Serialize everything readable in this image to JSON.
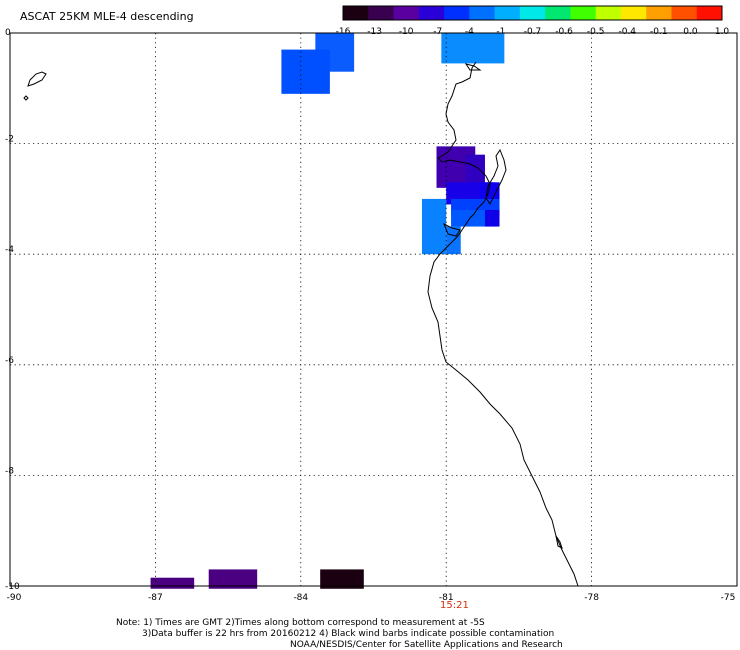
{
  "title": "ASCAT 25KM MLE-4 descending",
  "colorbar": {
    "labels": [
      "-16",
      "-13",
      "-10",
      "-7",
      "-4",
      "-1",
      "-0.7",
      "-0.6",
      "-0.5",
      "-0.4",
      "-0.1",
      "0.0",
      "1.0"
    ],
    "colors": [
      "#1a0010",
      "#3a0050",
      "#5a00a0",
      "#2a00d8",
      "#0030ff",
      "#0070ff",
      "#00b0ff",
      "#00e8e8",
      "#00e870",
      "#40ff00",
      "#c0ff00",
      "#ffe800",
      "#ffa000",
      "#ff5000",
      "#ff1000"
    ]
  },
  "axes": {
    "x_ticks": [
      "-90",
      "-87",
      "-84",
      "-81",
      "-78",
      "-75"
    ],
    "y_ticks": [
      "0",
      "-2",
      "-4",
      "-6",
      "-8",
      "-10"
    ]
  },
  "time_label": "15:21",
  "notes": [
    "Note: 1) Times are GMT 2)Times along bottom correspond to measurement at -5S",
    "3)Data buffer is 22 hrs from 20160212 4) Black wind barbs indicate possible contamination",
    "NOAA/NESDIS/Center for Satellite Applications and Research"
  ],
  "cells": [
    {
      "lon0": -83.7,
      "lon1": -82.9,
      "lat0": 0.0,
      "lat1": -0.7,
      "color": "#0a5cff"
    },
    {
      "lon0": -84.4,
      "lon1": -83.4,
      "lat0": -0.3,
      "lat1": -1.1,
      "color": "#0050ff"
    },
    {
      "lon0": -81.1,
      "lon1": -79.8,
      "lat0": 0.0,
      "lat1": -0.55,
      "color": "#0a8cff"
    },
    {
      "lon0": -81.2,
      "lon1": -80.4,
      "lat0": -2.05,
      "lat1": -2.8,
      "color": "#4000b0"
    },
    {
      "lon0": -80.6,
      "lon1": -80.2,
      "lat0": -2.2,
      "lat1": -2.8,
      "color": "#3000c0"
    },
    {
      "lon0": -81.0,
      "lon1": -80.0,
      "lat0": -2.7,
      "lat1": -3.1,
      "color": "#1800e8"
    },
    {
      "lon0": -80.3,
      "lon1": -79.9,
      "lat0": -2.7,
      "lat1": -3.3,
      "color": "#1000f0"
    },
    {
      "lon0": -80.9,
      "lon1": -79.9,
      "lat0": -3.0,
      "lat1": -3.3,
      "color": "#0040ff"
    },
    {
      "lon0": -80.9,
      "lon1": -80.0,
      "lat0": -3.2,
      "lat1": -3.5,
      "color": "#0058ff"
    },
    {
      "lon0": -80.2,
      "lon1": -79.9,
      "lat0": -3.2,
      "lat1": -3.5,
      "color": "#1000e8"
    },
    {
      "lon0": -81.5,
      "lon1": -81.0,
      "lat0": -3.0,
      "lat1": -4.0,
      "color": "#0a82ff"
    },
    {
      "lon0": -81.0,
      "lon1": -80.7,
      "lat0": -3.5,
      "lat1": -4.0,
      "color": "#0a74ff"
    },
    {
      "lon0": -87.1,
      "lon1": -86.2,
      "lat0": -9.85,
      "lat1": -10.05,
      "color": "#4a0080"
    },
    {
      "lon0": -85.9,
      "lon1": -84.9,
      "lat0": -9.7,
      "lat1": -10.05,
      "color": "#4a0080"
    },
    {
      "lon0": -83.6,
      "lon1": -82.7,
      "lat0": -9.7,
      "lat1": -10.05,
      "color": "#1a0010"
    }
  ]
}
